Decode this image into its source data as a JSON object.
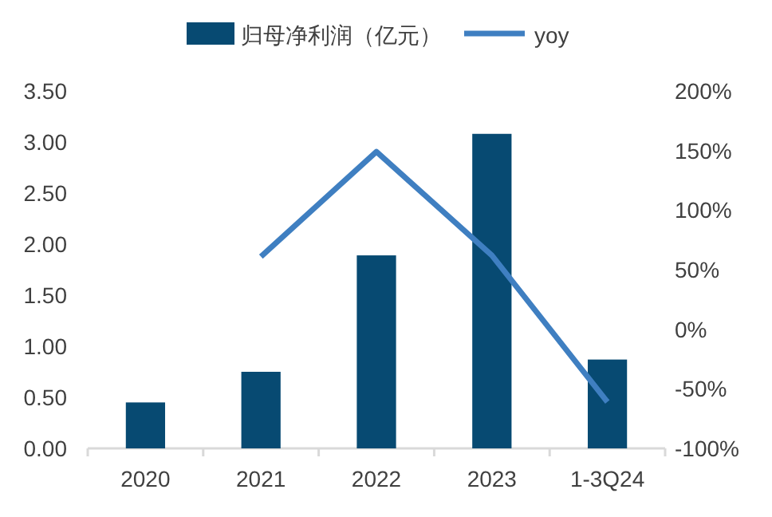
{
  "chart_data": {
    "type": "bar",
    "categories": [
      "2020",
      "2021",
      "2022",
      "2023",
      "1-3Q24"
    ],
    "series": [
      {
        "name": "归母净利润（亿元）",
        "color": "#074a72",
        "values": [
          0.45,
          0.75,
          1.89,
          3.08,
          0.87
        ]
      },
      {
        "name": "yoy",
        "type": "line",
        "axis": "y2",
        "color": "#3f7fc1",
        "values": [
          null,
          61,
          149,
          62,
          -61
        ]
      }
    ],
    "ylim": [
      0,
      3.5
    ],
    "yticks": [
      {
        "value": 0,
        "label": "0.00"
      },
      {
        "value": 0.5,
        "label": "0.50"
      },
      {
        "value": 1,
        "label": "1.00"
      },
      {
        "value": 1.5,
        "label": "1.50"
      },
      {
        "value": 2,
        "label": "2.00"
      },
      {
        "value": 2.5,
        "label": "2.50"
      },
      {
        "value": 3,
        "label": "3.00"
      },
      {
        "value": 3.5,
        "label": "3.50"
      }
    ],
    "y2lim": [
      -100,
      200
    ],
    "y2ticks": [
      {
        "value": -100,
        "label": "-100%"
      },
      {
        "value": -50,
        "label": "-50%"
      },
      {
        "value": 0,
        "label": "0%"
      },
      {
        "value": 50,
        "label": "50%"
      },
      {
        "value": 100,
        "label": "100%"
      },
      {
        "value": 150,
        "label": "150%"
      },
      {
        "value": 200,
        "label": "200%"
      }
    ],
    "legend": "top",
    "grid": false,
    "marker": "none",
    "line_style": "solid"
  }
}
